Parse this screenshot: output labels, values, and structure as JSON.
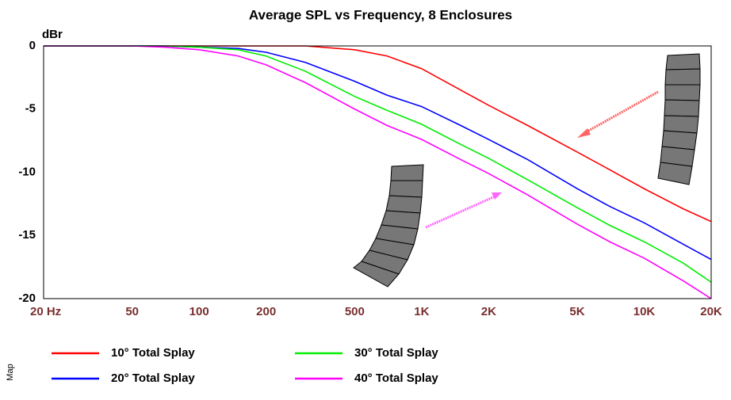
{
  "chart_data": {
    "type": "line",
    "title": "Average SPL vs Frequency, 8 Enclosures",
    "y_label": "dBr",
    "side_note": "Map",
    "x": [
      20,
      50,
      70,
      100,
      150,
      200,
      300,
      500,
      700,
      1000,
      1500,
      2000,
      3000,
      5000,
      7000,
      10000,
      15000,
      20000
    ],
    "series": [
      {
        "name": "10° Total Splay",
        "color": "#ff0000",
        "values": [
          0,
          0,
          0,
          0,
          0,
          0,
          0,
          -0.3,
          -0.8,
          -1.8,
          -3.5,
          -4.7,
          -6.3,
          -8.4,
          -9.8,
          -11.3,
          -12.9,
          -13.9
        ]
      },
      {
        "name": "20° Total Splay",
        "color": "#0000ff",
        "values": [
          0,
          0,
          0,
          -0.1,
          -0.2,
          -0.5,
          -1.3,
          -2.8,
          -3.9,
          -4.8,
          -6.3,
          -7.4,
          -9.0,
          -11.3,
          -12.7,
          -14.0,
          -15.7,
          -16.9
        ]
      },
      {
        "name": "30° Total Splay",
        "color": "#00ee00",
        "values": [
          0,
          0,
          0,
          -0.1,
          -0.3,
          -0.8,
          -2.0,
          -4.0,
          -5.1,
          -6.2,
          -7.8,
          -8.9,
          -10.6,
          -12.8,
          -14.2,
          -15.5,
          -17.2,
          -18.7
        ]
      },
      {
        "name": "40° Total Splay",
        "color": "#ff00ff",
        "values": [
          0,
          0,
          -0.1,
          -0.3,
          -0.8,
          -1.5,
          -2.9,
          -5.0,
          -6.3,
          -7.4,
          -9.0,
          -10.1,
          -11.8,
          -14.1,
          -15.5,
          -16.8,
          -18.6,
          -20.0
        ]
      }
    ],
    "xlog": true,
    "xlim": [
      20,
      20000
    ],
    "ylim": [
      -20,
      0
    ],
    "xticks": [
      {
        "value": 20,
        "label": "20 Hz"
      },
      50,
      100,
      200,
      500,
      {
        "value": 1000,
        "label": "1K"
      },
      {
        "value": 2000,
        "label": "2K"
      },
      {
        "value": 5000,
        "label": "5K"
      },
      {
        "value": 10000,
        "label": "10K"
      },
      {
        "value": 20000,
        "label": "20K"
      }
    ],
    "xminor_ticks": [
      30,
      40,
      60,
      70,
      80,
      90,
      300,
      400,
      600,
      700,
      800,
      900,
      3000,
      4000,
      6000,
      7000,
      8000,
      9000
    ],
    "yticks": [
      0,
      -5,
      -10,
      -15,
      -20
    ],
    "grid": true
  }
}
